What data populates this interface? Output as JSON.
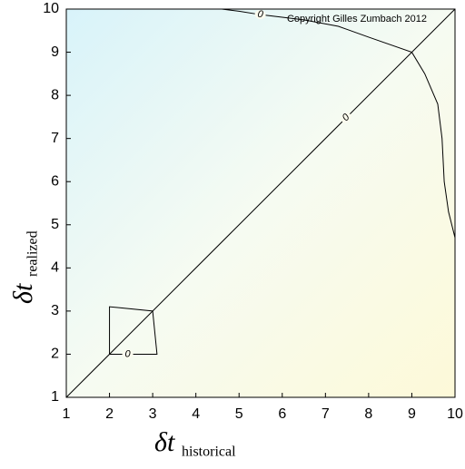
{
  "chart_data": {
    "type": "contour",
    "title": "Copyright Gilles Zumbach 2012",
    "xlabel": {
      "main": "δt",
      "sub": "historical"
    },
    "ylabel": {
      "main": "δt",
      "sub": "realized"
    },
    "xlim": [
      1,
      10
    ],
    "ylim": [
      1,
      10
    ],
    "xticks": [
      1,
      2,
      3,
      4,
      5,
      6,
      7,
      8,
      9,
      10
    ],
    "yticks": [
      1,
      2,
      3,
      4,
      5,
      6,
      7,
      8,
      9,
      10
    ],
    "color": "#000000",
    "contours": [
      {
        "level": 0,
        "x": [
          4.6,
          5.0,
          5.5,
          6.5,
          7.3,
          8.0,
          9.0,
          9.3,
          9.6,
          9.7,
          9.75,
          9.85,
          10
        ],
        "y": [
          10,
          9.95,
          9.87,
          9.75,
          9.6,
          9.35,
          9.0,
          8.5,
          7.8,
          7.0,
          6.0,
          5.3,
          4.7
        ]
      },
      {
        "level": 0,
        "x": [
          1,
          10
        ],
        "y": [
          1,
          10
        ]
      },
      {
        "level": 0,
        "x": [
          2,
          2,
          3,
          3.1,
          2
        ],
        "y": [
          2,
          3.1,
          3.0,
          2.0,
          2
        ]
      }
    ]
  }
}
